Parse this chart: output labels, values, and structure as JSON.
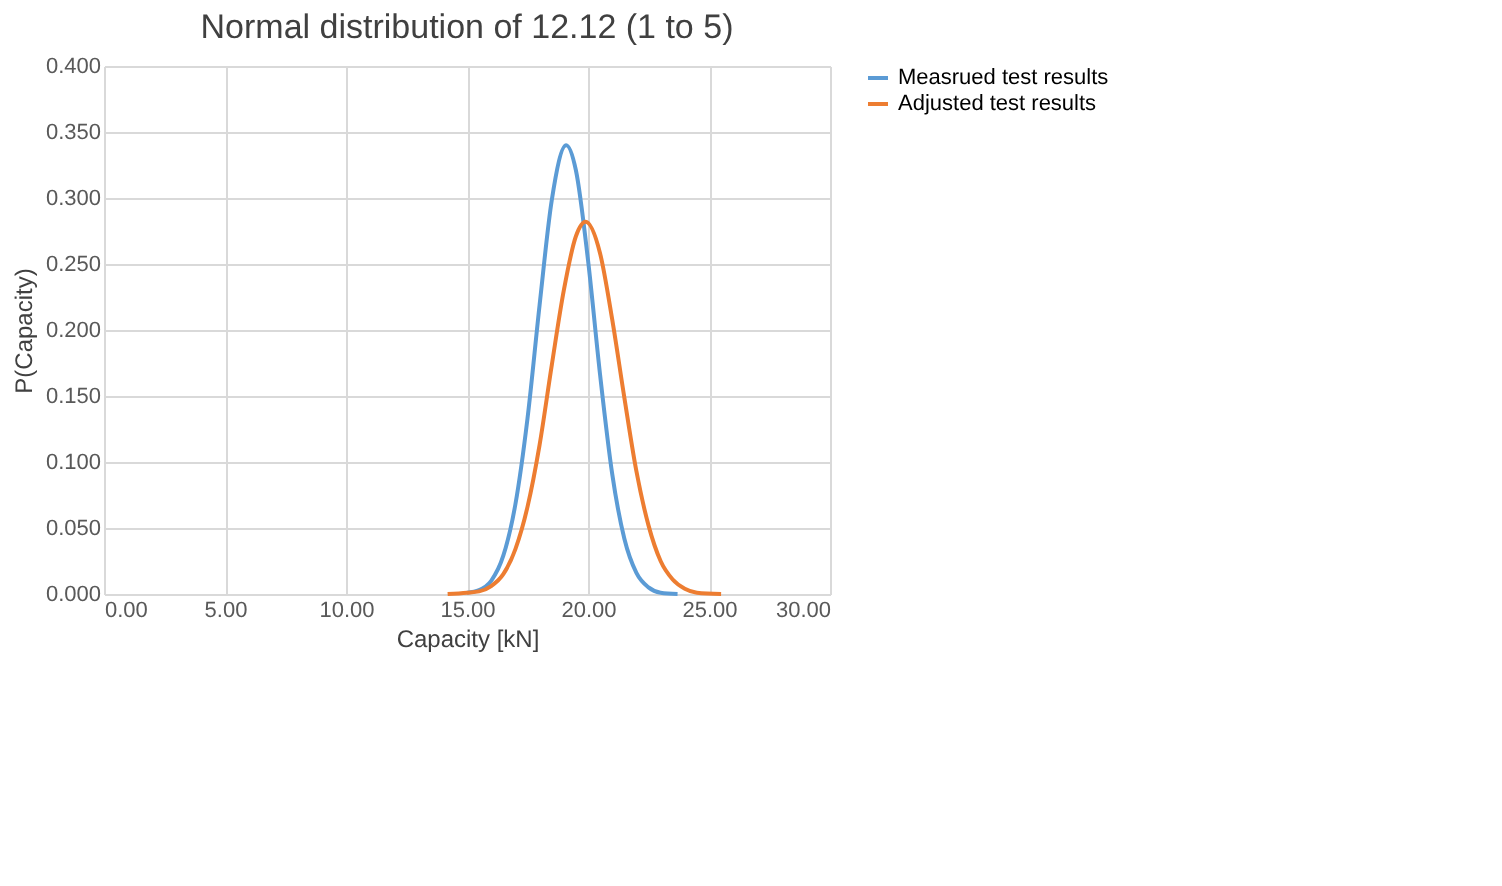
{
  "chart_data": {
    "type": "line",
    "title": "Normal distribution of 12.12 (1 to 5)",
    "xlabel": "Capacity [kN]",
    "ylabel": "P(Capacity)",
    "xlim": [
      0,
      30
    ],
    "xticks": [
      {
        "value": 0,
        "label": "0.00"
      },
      {
        "value": 5,
        "label": "5.00"
      },
      {
        "value": 10,
        "label": "10.00"
      },
      {
        "value": 15,
        "label": "15.00"
      },
      {
        "value": 20,
        "label": "20.00"
      },
      {
        "value": 25,
        "label": "25.00"
      },
      {
        "value": 30,
        "label": "30.00"
      }
    ],
    "ylim": [
      0,
      0.4
    ],
    "yticks": [
      {
        "value": 0,
        "label": "0.000"
      },
      {
        "value": 0.05,
        "label": "0.050"
      },
      {
        "value": 0.1,
        "label": "0.100"
      },
      {
        "value": 0.15,
        "label": "0.150"
      },
      {
        "value": 0.2,
        "label": "0.200"
      },
      {
        "value": 0.25,
        "label": "0.250"
      },
      {
        "value": 0.3,
        "label": "0.300"
      },
      {
        "value": 0.35,
        "label": "0.350"
      },
      {
        "value": 0.4,
        "label": "0.400"
      }
    ],
    "grid": true,
    "legend": "right",
    "marker": "none",
    "line_style": "solid",
    "series": [
      {
        "name": "Measrued test results",
        "color": "#5b9bd5",
        "x": [
          15.0,
          15.5,
          16.0,
          16.5,
          17.0,
          17.5,
          18.0,
          18.5,
          19.1,
          19.5,
          20.0,
          20.5,
          21.0,
          21.5,
          22.0,
          22.5,
          23.0,
          23.7
        ],
        "values": [
          0.001,
          0.003,
          0.01,
          0.029,
          0.068,
          0.133,
          0.219,
          0.298,
          0.34,
          0.321,
          0.253,
          0.166,
          0.091,
          0.042,
          0.016,
          0.005,
          0.001,
          0.0
        ]
      },
      {
        "name": "Adjusted test results",
        "color": "#ed7d31",
        "x": [
          14.2,
          15.0,
          15.5,
          16.0,
          16.5,
          17.0,
          17.5,
          18.0,
          18.5,
          19.0,
          19.5,
          19.9,
          20.5,
          21.0,
          21.5,
          22.0,
          22.5,
          23.0,
          23.5,
          24.0,
          24.5,
          25.5
        ],
        "values": [
          0.0,
          0.001,
          0.002,
          0.006,
          0.015,
          0.034,
          0.066,
          0.113,
          0.173,
          0.23,
          0.271,
          0.282,
          0.258,
          0.208,
          0.149,
          0.093,
          0.052,
          0.025,
          0.011,
          0.004,
          0.001,
          0.0
        ]
      }
    ]
  }
}
